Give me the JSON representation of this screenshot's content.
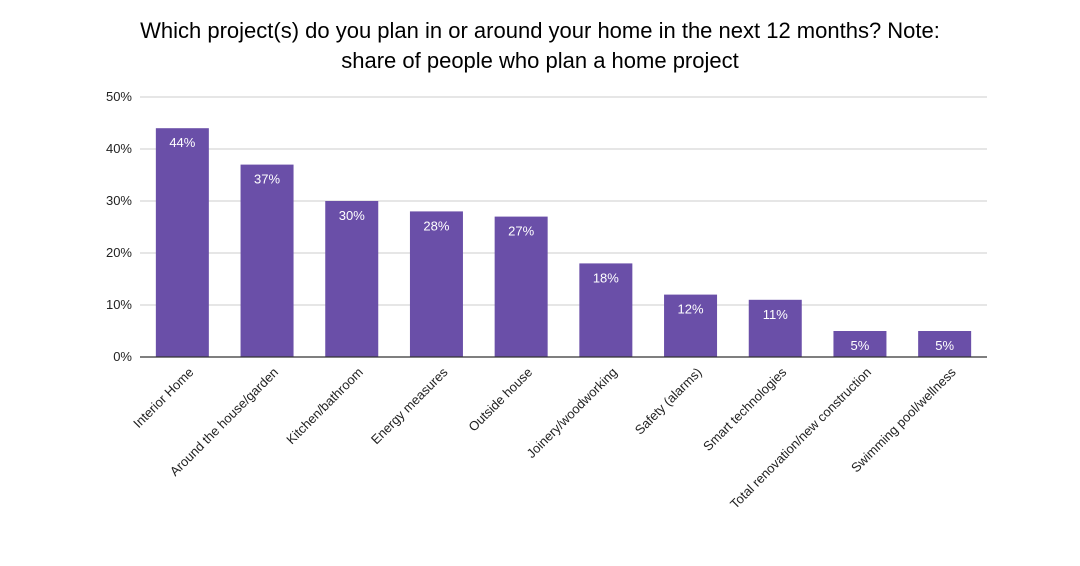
{
  "chart_data": {
    "type": "bar",
    "title_lines": [
      "Which project(s) do you plan in or around your home in the next 12 months? Note:",
      "share of people who plan a home project"
    ],
    "categories": [
      "Interior Home",
      "Around the house/garden",
      "Kitchen/bathroom",
      "Energy measures",
      "Outside house",
      "Joinery/woodworking",
      "Safety (alarms)",
      "Smart technologies",
      "Total renovation/new construction",
      "Swimming pool/wellness"
    ],
    "values": [
      44,
      37,
      30,
      28,
      27,
      18,
      12,
      11,
      5,
      5
    ],
    "value_labels": [
      "44%",
      "37%",
      "30%",
      "28%",
      "27%",
      "18%",
      "12%",
      "11%",
      "5%",
      "5%"
    ],
    "y_ticks": [
      0,
      10,
      20,
      30,
      40,
      50
    ],
    "y_tick_labels": [
      "0%",
      "10%",
      "20%",
      "30%",
      "40%",
      "50%"
    ],
    "ylim": [
      0,
      50
    ],
    "grid": true,
    "bar_color": "#6a4fa8",
    "grid_color": "#cccccc",
    "axis_color": "#333333"
  }
}
